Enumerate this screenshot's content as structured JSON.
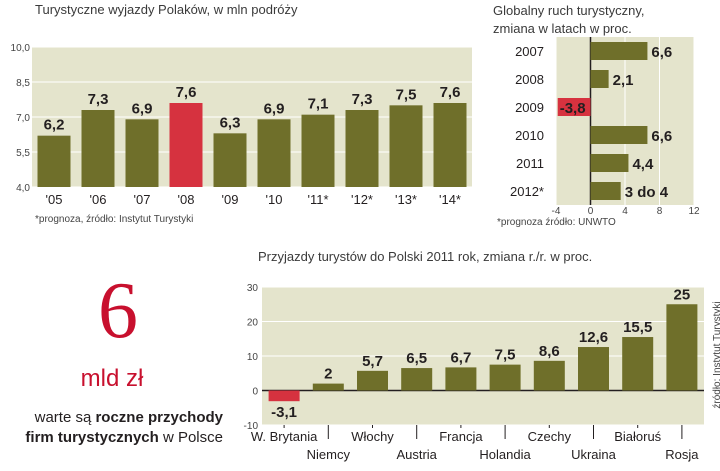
{
  "colors": {
    "bar": "#6f6f2a",
    "highlight": "#d6323f",
    "panel": "#e4e4cc",
    "text": "#231f20",
    "accent": "#c8102e"
  },
  "chart_data": [
    {
      "type": "bar",
      "title": "Turystyczne wyjazdy Polaków, w mln podróży",
      "categories": [
        "'05",
        "'06",
        "'07",
        "'08",
        "'09",
        "'10",
        "'11*",
        "'12*",
        "'13*",
        "'14*"
      ],
      "values": [
        6.2,
        7.3,
        6.9,
        7.6,
        6.3,
        6.9,
        7.1,
        7.3,
        7.5,
        7.6
      ],
      "labels": [
        "6,2",
        "7,3",
        "6,9",
        "7,6",
        "6,3",
        "6,9",
        "7,1",
        "7,3",
        "7,5",
        "7,6"
      ],
      "highlight_index": 3,
      "ylim": [
        4.0,
        10.0
      ],
      "yticks": [
        4.0,
        5.5,
        7.0,
        8.5,
        10.0
      ],
      "ytick_labels": [
        "4,0",
        "5,5",
        "7,0",
        "8,5",
        "10,0"
      ],
      "source": "*prognoza, źródło: Instytut Turystyki"
    },
    {
      "type": "bar",
      "orientation": "horizontal",
      "title_line1": "Globalny ruch turystyczny,",
      "title_line2": "zmiana w latach w proc.",
      "categories": [
        "2007",
        "2008",
        "2009",
        "2010",
        "2011",
        "2012*"
      ],
      "values": [
        6.6,
        2.1,
        -3.8,
        6.6,
        4.4,
        3.5
      ],
      "labels": [
        "6,6",
        "2,1",
        "-3,8",
        "6,6",
        "4,4",
        "3 do 4"
      ],
      "xlim": [
        -4,
        12
      ],
      "xticks": [
        -4,
        0,
        4,
        8,
        12
      ],
      "xtick_labels": [
        "-4",
        "0",
        "4",
        "8",
        "12"
      ],
      "source": "*prognoza  źródło: UNWTO"
    },
    {
      "type": "bar",
      "title": "Przyjazdy turystów do Polski 2011 rok, zmiana r./r. w proc.",
      "categories": [
        "W. Brytania",
        "Niemcy",
        "Włochy",
        "Austria",
        "Francja",
        "Holandia",
        "Czechy",
        "Ukraina",
        "Białoruś",
        "Rosja"
      ],
      "values": [
        -3.1,
        2,
        5.7,
        6.5,
        6.7,
        7.5,
        8.6,
        12.6,
        15.5,
        25
      ],
      "labels": [
        "-3,1",
        "2",
        "5,7",
        "6,5",
        "6,7",
        "7,5",
        "8,6",
        "12,6",
        "15,5",
        "25"
      ],
      "ylim": [
        -10,
        30
      ],
      "yticks": [
        -10,
        0,
        10,
        20,
        30
      ],
      "ytick_labels": [
        "-10",
        "0",
        "10",
        "20",
        "30"
      ],
      "source": "źródło: Instytut Turystyki"
    }
  ],
  "highlight": {
    "number": "6",
    "unit": "mld zł",
    "caption_part1": "warte są ",
    "caption_bold1": "roczne przychody",
    "caption_bold2": "firm turystycznych",
    "caption_part2": " w Polsce"
  }
}
